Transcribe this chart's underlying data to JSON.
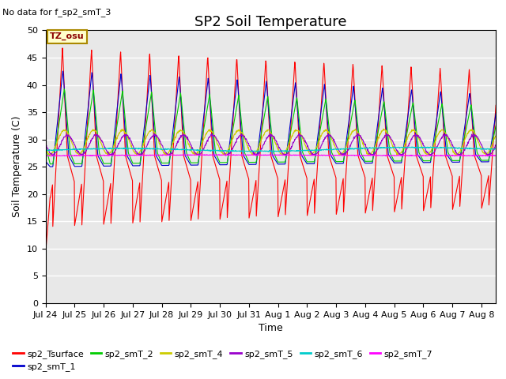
{
  "title": "SP2 Soil Temperature",
  "subtitle": "No data for f_sp2_smT_3",
  "xlabel": "Time",
  "ylabel": "Soil Temperature (C)",
  "ylim": [
    0,
    50
  ],
  "yticks": [
    0,
    5,
    10,
    15,
    20,
    25,
    30,
    35,
    40,
    45,
    50
  ],
  "tz_label": "TZ_osu",
  "num_days": 15.5,
  "xtick_labels": [
    "Jul 24",
    "Jul 25",
    "Jul 26",
    "Jul 27",
    "Jul 28",
    "Jul 29",
    "Jul 30",
    "Jul 31",
    "Aug 1",
    "Aug 2",
    "Aug 3",
    "Aug 4",
    "Aug 5",
    "Aug 6",
    "Aug 7",
    "Aug 8"
  ],
  "series_colors": {
    "sp2_Tsurface": "#ff0000",
    "sp2_smT_1": "#0000cc",
    "sp2_smT_2": "#00cc00",
    "sp2_smT_4": "#cccc00",
    "sp2_smT_5": "#9900cc",
    "sp2_smT_6": "#00cccc",
    "sp2_smT_7": "#ff00ff"
  },
  "bg_color": "#e8e8e8",
  "fig_bg_color": "#ffffff",
  "grid_color": "#ffffff",
  "title_fontsize": 13,
  "label_fontsize": 9,
  "tick_fontsize": 8,
  "legend_fontsize": 8
}
